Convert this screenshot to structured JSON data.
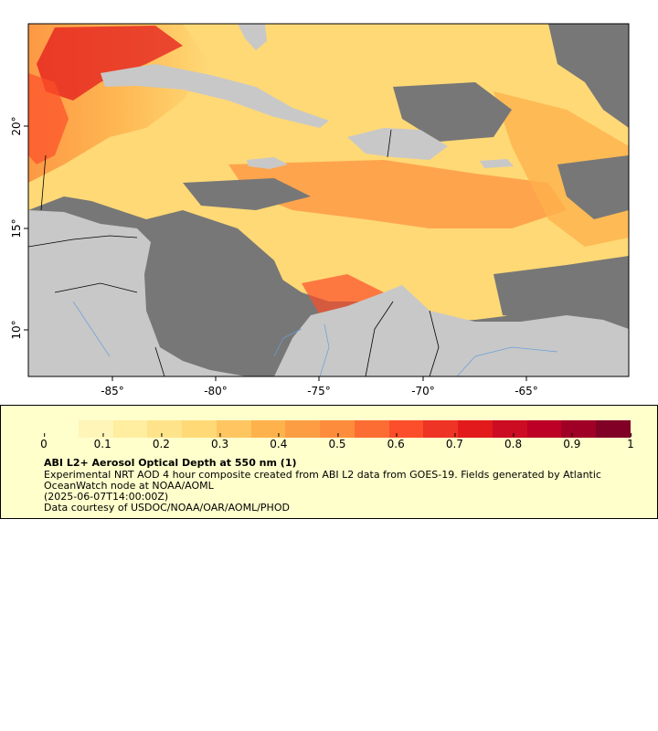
{
  "map": {
    "x_ticks": [
      "-85°",
      "-80°",
      "-75°",
      "-70°",
      "-65°"
    ],
    "y_ticks": [
      "20°",
      "15°",
      "10°"
    ],
    "colors": {
      "ocean_no_data": "#777777",
      "land": "#c8c8c8",
      "rivers": "#6a9fd8",
      "borders": "#000000"
    }
  },
  "legend": {
    "colorbar_colors": [
      "#ffffcc",
      "#fff5b8",
      "#ffeda0",
      "#fee38a",
      "#fed976",
      "#fec560",
      "#feb24c",
      "#fd9d43",
      "#fd8d3c",
      "#fc6d33",
      "#fc4e2a",
      "#ee3424",
      "#e31a1c",
      "#cc0c22",
      "#bd0026",
      "#a00026",
      "#800026"
    ],
    "ticks": [
      "0",
      "0.1",
      "0.2",
      "0.3",
      "0.4",
      "0.5",
      "0.6",
      "0.7",
      "0.8",
      "0.9",
      "1"
    ],
    "title": "ABI L2+ Aerosol Optical Depth at 550 nm (1)",
    "description": "Experimental NRT AOD 4 hour composite created from ABI L2 data from GOES-19. Fields generated by Atlantic OceanWatch node at NOAA/AOML",
    "time": "(2025-06-07T14:00:00Z)",
    "credit": "Data courtesy of USDOC/NOAA/OAR/AOML/PHOD"
  }
}
